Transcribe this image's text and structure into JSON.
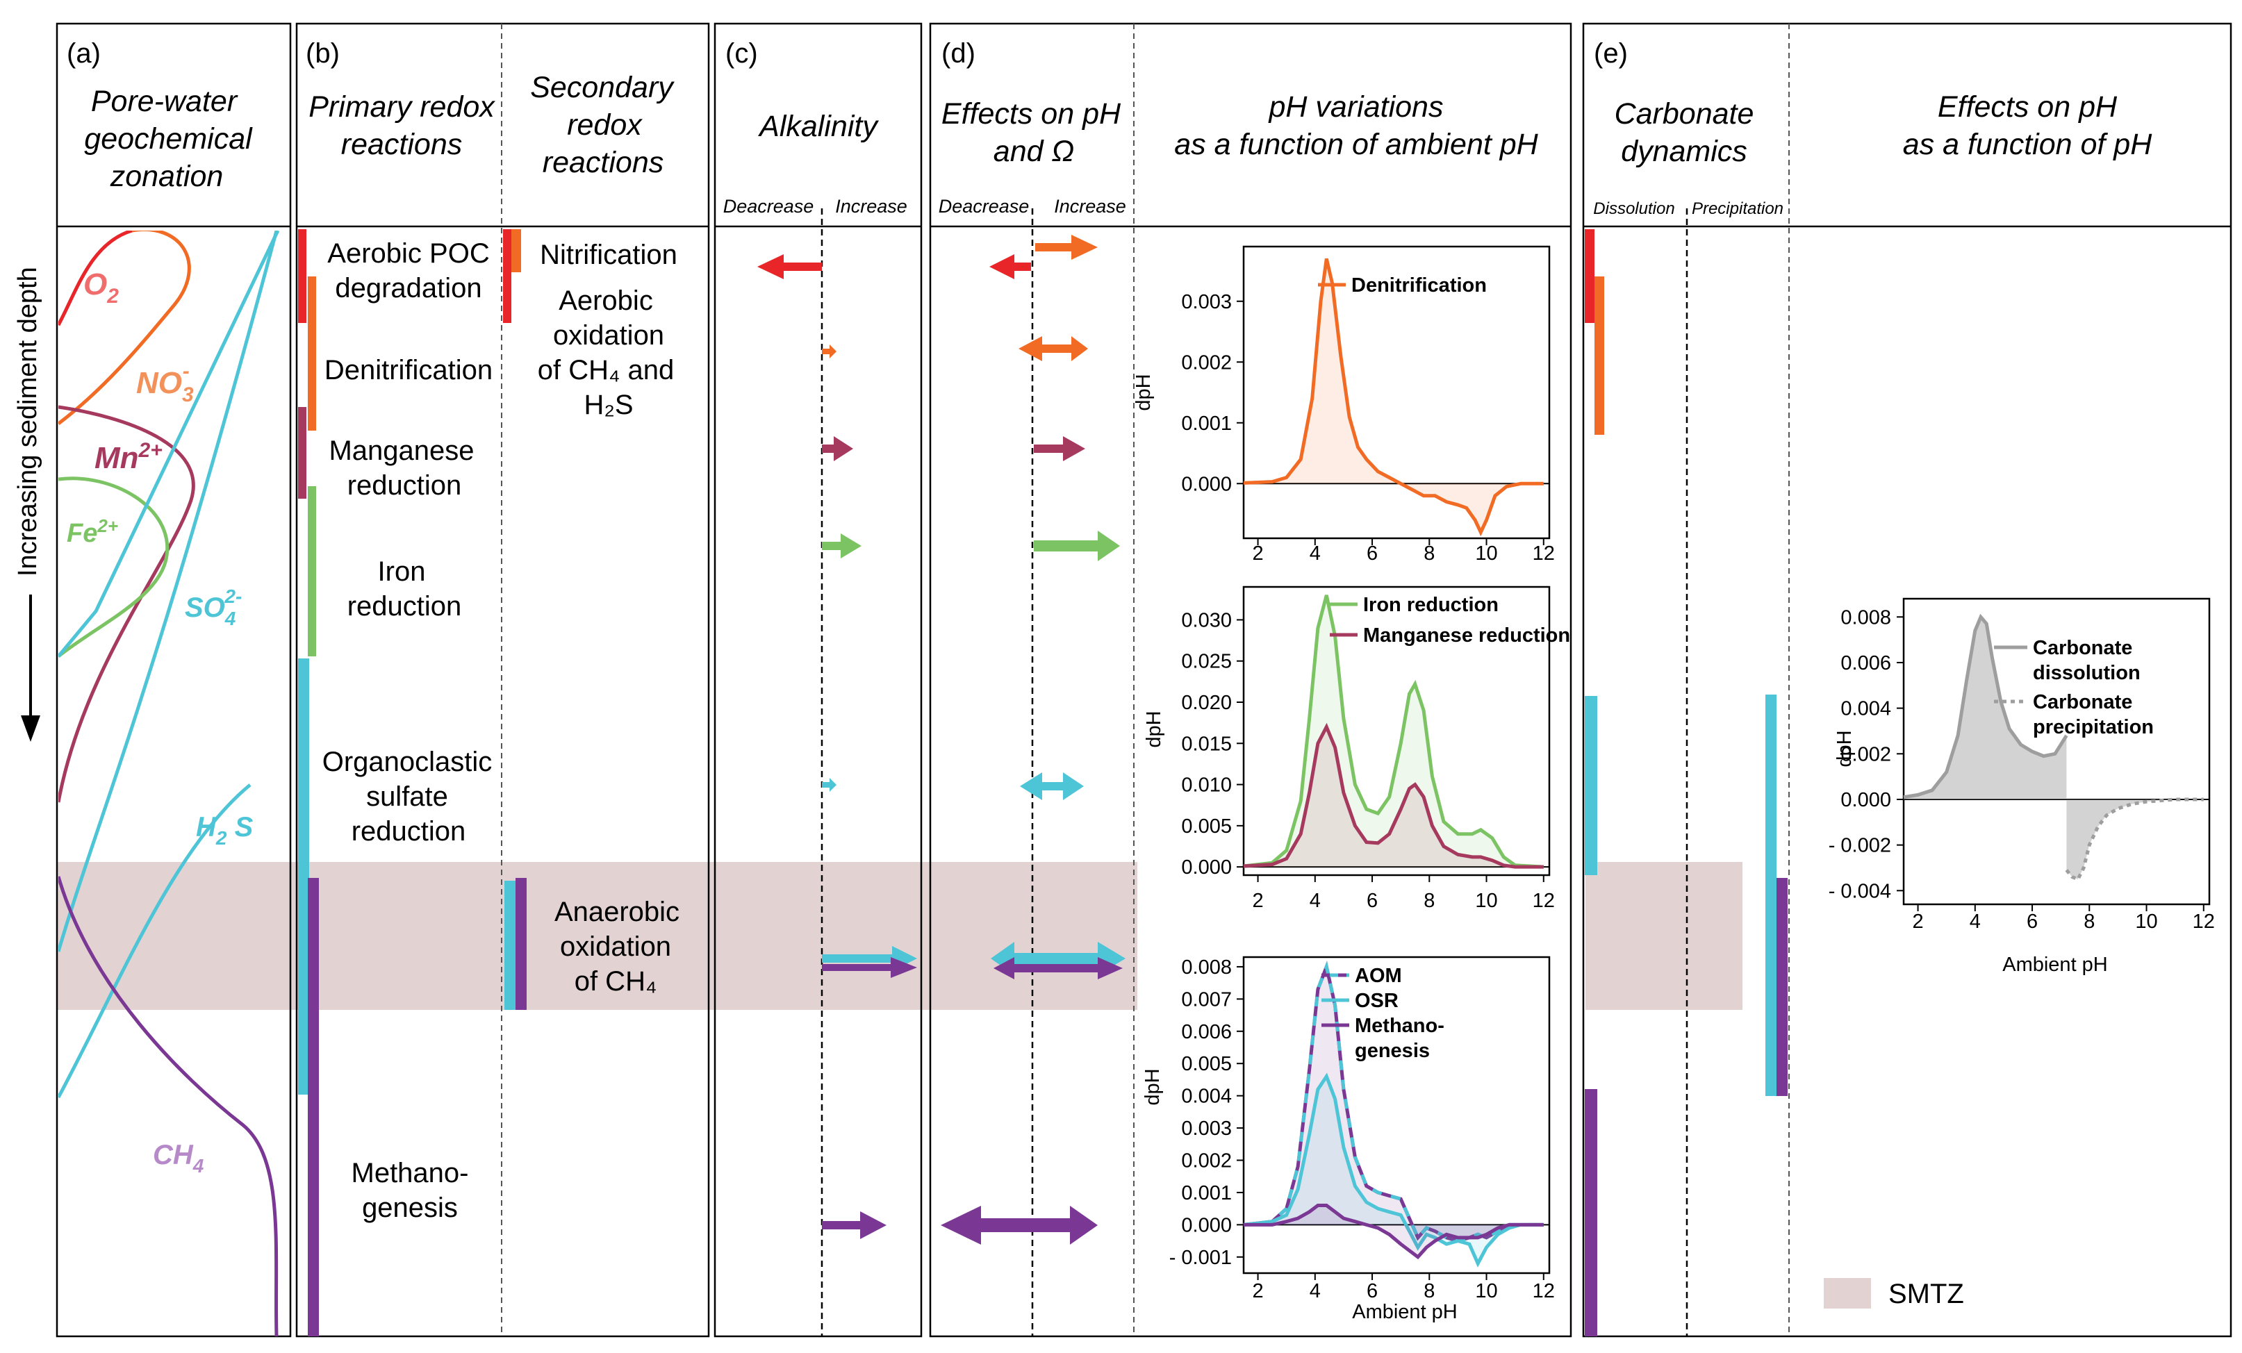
{
  "panels": {
    "a": {
      "letter": "(a)",
      "title": [
        "Pore-water",
        "geochemical",
        "zonation"
      ]
    },
    "b": {
      "letter": "(b)",
      "title_primary": [
        "Primary redox",
        "reactions"
      ],
      "title_secondary": [
        "Secondary",
        "redox",
        "reactions"
      ]
    },
    "c": {
      "letter": "(c)",
      "title": "Alkalinity",
      "decrease": "Deacrease",
      "increase": "Increase"
    },
    "d": {
      "letter": "(d)",
      "title_effects": [
        "Effects on pH",
        "and Ω"
      ],
      "title_variations": [
        "pH variations",
        "as a function of ambient pH"
      ],
      "decrease": "Deacrease",
      "increase": "Increase"
    },
    "e": {
      "letter": "(e)",
      "title_carb": [
        "Carbonate",
        "dynamics"
      ],
      "title_effects": [
        "Effects on pH",
        "as a function of pH"
      ],
      "dissolution": "Dissolution",
      "precipitation": "Precipitation"
    }
  },
  "depth_axis_label": "Increasing sediment depth",
  "species": {
    "o2": {
      "base": "O",
      "sub": "2",
      "sup": ""
    },
    "no3": {
      "base": "NO",
      "sub": "3",
      "sup": "-"
    },
    "mn": {
      "base": "Mn",
      "sub": "",
      "sup": "2+"
    },
    "fe": {
      "base": "Fe",
      "sub": "",
      "sup": "2+"
    },
    "so4": {
      "base": "SO",
      "sub": "4",
      "sup": "2-"
    },
    "h2s": {
      "base": "H",
      "sub": "2",
      "sup": "",
      "tail": " S"
    },
    "ch4": {
      "base": "CH",
      "sub": "4",
      "sup": ""
    }
  },
  "primary_reactions": {
    "aerobic": [
      "Aerobic POC",
      "degradation"
    ],
    "denitrification": [
      "Denitrification"
    ],
    "manganese": [
      "Manganese",
      "reduction"
    ],
    "iron": [
      "Iron",
      "reduction"
    ],
    "sulfate": [
      "Organoclastic",
      "sulfate",
      "reduction"
    ],
    "methanogenesis": [
      "Methano-",
      "genesis"
    ]
  },
  "secondary_reactions": {
    "nitrification": "Nitrification",
    "aerobic_oxidation": [
      "Aerobic",
      "oxidation",
      "of CH₄ and",
      "H₂S"
    ],
    "aom": [
      "Anaerobic",
      "oxidation",
      "of CH₄"
    ]
  },
  "legend_smtz": "SMTZ",
  "colors": {
    "o2": "#e8262a",
    "no3": "#f26b24",
    "mn": "#a63a5e",
    "fe": "#7cc463",
    "so4": "#4ec5d6",
    "ch4": "#7a3793",
    "smtz": "#e2d2d2",
    "carbonate": "#9e9e9e"
  },
  "chart_data": [
    {
      "type": "area",
      "id": "denitrification",
      "xlabel": "",
      "ylabel": "dpH",
      "xlim": [
        1.5,
        12.2
      ],
      "ylim": [
        -0.0009,
        0.0039
      ],
      "xticks": [
        2,
        4,
        6,
        8,
        10,
        12
      ],
      "yticks": [
        0.0,
        0.001,
        0.002,
        0.003
      ],
      "ytick_labels": [
        "0.000",
        "0.001",
        "0.002",
        "0.003"
      ],
      "series": [
        {
          "name": "Denitrification",
          "color": "#f26b24",
          "x": [
            1.5,
            2.5,
            3.0,
            3.5,
            3.9,
            4.2,
            4.4,
            4.6,
            4.9,
            5.2,
            5.5,
            5.8,
            6.2,
            6.6,
            7.0,
            7.4,
            7.8,
            8.2,
            8.6,
            9.0,
            9.3,
            9.6,
            9.8,
            10.0,
            10.3,
            10.7,
            11.2,
            12.0
          ],
          "y": [
            1e-05,
            3e-05,
            0.0001,
            0.0004,
            0.0014,
            0.003,
            0.0037,
            0.0033,
            0.0021,
            0.0011,
            0.0006,
            0.0004,
            0.0002,
            0.0001,
            0.0,
            -0.0001,
            -0.0002,
            -0.0002,
            -0.0003,
            -0.00035,
            -0.0004,
            -0.0006,
            -0.0008,
            -0.0006,
            -0.0002,
            -5e-05,
            0.0,
            0.0
          ]
        }
      ]
    },
    {
      "type": "area",
      "id": "iron_manganese",
      "xlabel": "",
      "ylabel": "dpH",
      "xlim": [
        1.5,
        12.2
      ],
      "ylim": [
        -0.001,
        0.034
      ],
      "xticks": [
        2,
        4,
        6,
        8,
        10,
        12
      ],
      "yticks": [
        0.0,
        0.005,
        0.01,
        0.015,
        0.02,
        0.025,
        0.03
      ],
      "ytick_labels": [
        "0.000",
        "0.005",
        "0.010",
        "0.015",
        "0.020",
        "0.025",
        "0.030"
      ],
      "series": [
        {
          "name": "Iron reduction",
          "color": "#7cc463",
          "x": [
            1.5,
            2.5,
            3.0,
            3.5,
            3.8,
            4.1,
            4.4,
            4.7,
            5.0,
            5.4,
            5.8,
            6.2,
            6.6,
            7.0,
            7.3,
            7.5,
            7.8,
            8.1,
            8.5,
            9.0,
            9.5,
            9.8,
            10.2,
            10.6,
            11.0,
            12.0
          ],
          "y": [
            0.0001,
            0.0005,
            0.002,
            0.008,
            0.018,
            0.029,
            0.033,
            0.028,
            0.018,
            0.01,
            0.007,
            0.0065,
            0.0085,
            0.015,
            0.021,
            0.0222,
            0.019,
            0.011,
            0.0055,
            0.004,
            0.004,
            0.0045,
            0.0035,
            0.0012,
            0.0002,
            0.0
          ]
        },
        {
          "name": "Manganese reduction",
          "color": "#a63a5e",
          "x": [
            1.5,
            2.5,
            3.0,
            3.5,
            3.8,
            4.1,
            4.4,
            4.7,
            5.0,
            5.4,
            5.8,
            6.2,
            6.6,
            7.0,
            7.3,
            7.5,
            7.8,
            8.1,
            8.5,
            9.0,
            9.5,
            9.8,
            10.2,
            10.6,
            11.0,
            12.0
          ],
          "y": [
            0.0001,
            0.0003,
            0.001,
            0.004,
            0.009,
            0.015,
            0.017,
            0.0145,
            0.009,
            0.005,
            0.003,
            0.0029,
            0.004,
            0.007,
            0.0095,
            0.01,
            0.0085,
            0.005,
            0.0025,
            0.0015,
            0.0012,
            0.0012,
            0.0008,
            0.0002,
            0.0,
            0.0
          ]
        }
      ]
    },
    {
      "type": "area",
      "id": "aom_osr_methanogenesis",
      "xlabel": "Ambient pH",
      "ylabel": "dpH",
      "xlim": [
        1.5,
        12.2
      ],
      "ylim": [
        -0.0015,
        0.0083
      ],
      "xticks": [
        2,
        4,
        6,
        8,
        10,
        12
      ],
      "yticks": [
        -0.001,
        0.0,
        0.001,
        0.002,
        0.003,
        0.004,
        0.005,
        0.006,
        0.007,
        0.008
      ],
      "ytick_labels": [
        "- 0.001",
        "0.000",
        "0.001",
        "0.002",
        "0.003",
        "0.004",
        "0.005",
        "0.006",
        "0.007",
        "0.008"
      ],
      "series": [
        {
          "name": "AOM",
          "color": "#7a3793",
          "dash2": "#4ec5d6",
          "x": [
            1.5,
            2.5,
            3.0,
            3.4,
            3.8,
            4.1,
            4.4,
            4.7,
            5.0,
            5.4,
            5.8,
            6.2,
            6.6,
            7.0,
            7.3,
            7.6,
            7.9,
            8.2,
            8.6,
            9.0,
            9.4,
            9.7,
            10.0,
            10.4,
            10.8,
            11.2,
            12.0
          ],
          "y": [
            0.0,
            0.0001,
            0.0005,
            0.0018,
            0.0048,
            0.0073,
            0.008,
            0.0068,
            0.0042,
            0.0021,
            0.0012,
            0.001,
            0.0009,
            0.0008,
            0.0002,
            -0.0004,
            -0.0001,
            -0.0002,
            -0.0004,
            -0.0005,
            -0.0004,
            -0.0003,
            -0.0004,
            -0.0002,
            0.0,
            0.0,
            0.0
          ]
        },
        {
          "name": "OSR",
          "color": "#4ec5d6",
          "x": [
            1.5,
            2.5,
            3.0,
            3.4,
            3.8,
            4.1,
            4.4,
            4.7,
            5.0,
            5.4,
            5.8,
            6.2,
            6.6,
            7.0,
            7.3,
            7.6,
            7.9,
            8.2,
            8.6,
            9.0,
            9.4,
            9.7,
            10.0,
            10.4,
            10.8,
            11.2,
            12.0
          ],
          "y": [
            0.0,
            0.0001,
            0.0003,
            0.0011,
            0.0028,
            0.0042,
            0.0046,
            0.0039,
            0.0024,
            0.0012,
            0.0007,
            0.0005,
            0.0004,
            0.0003,
            -0.0002,
            -0.0007,
            -0.0003,
            -0.0004,
            -0.0006,
            -0.0005,
            -0.0006,
            -0.0012,
            -0.0007,
            -0.0003,
            -0.0001,
            0.0,
            0.0
          ]
        },
        {
          "name": "Methano-\ngenesis",
          "color": "#7a3793",
          "x": [
            1.5,
            2.5,
            3.0,
            3.4,
            3.8,
            4.1,
            4.4,
            4.7,
            5.0,
            5.4,
            5.8,
            6.2,
            6.6,
            7.0,
            7.3,
            7.6,
            7.9,
            8.2,
            8.6,
            9.0,
            9.4,
            9.7,
            10.0,
            10.4,
            10.8,
            11.2,
            12.0
          ],
          "y": [
            0.0,
            0.0,
            0.0001,
            0.0002,
            0.0004,
            0.0006,
            0.0006,
            0.0004,
            0.0002,
            0.0001,
            0.0,
            -0.0001,
            -0.0003,
            -0.0006,
            -0.0008,
            -0.001,
            -0.0007,
            -0.0005,
            -0.0003,
            -0.0004,
            -0.0004,
            -0.0004,
            -0.0003,
            -0.0001,
            0.0,
            0.0,
            0.0
          ]
        }
      ]
    },
    {
      "type": "area",
      "id": "carbonate",
      "xlabel": "Ambient pH",
      "ylabel": "dpH",
      "xlim": [
        1.5,
        12.2
      ],
      "ylim": [
        -0.0046,
        0.0088
      ],
      "xticks": [
        2,
        4,
        6,
        8,
        10,
        12
      ],
      "yticks": [
        -0.004,
        -0.002,
        0.0,
        0.002,
        0.004,
        0.006,
        0.008
      ],
      "ytick_labels": [
        "- 0.004",
        "- 0.002",
        "0.000",
        "0.002",
        "0.004",
        "0.006",
        "0.008"
      ],
      "series": [
        {
          "name": "Carbonate\ndissolution",
          "color": "#9e9e9e",
          "x": [
            1.5,
            2.0,
            2.5,
            3.0,
            3.4,
            3.7,
            4.0,
            4.2,
            4.4,
            4.6,
            4.9,
            5.2,
            5.6,
            6.0,
            6.4,
            6.8,
            7.2
          ],
          "y": [
            0.0001,
            0.0002,
            0.0004,
            0.0012,
            0.0028,
            0.0052,
            0.0074,
            0.008,
            0.0077,
            0.0062,
            0.0043,
            0.0031,
            0.0024,
            0.0021,
            0.0019,
            0.002,
            0.0028
          ]
        },
        {
          "name": "Carbonate\nprecipitation",
          "color": "#9e9e9e",
          "dashed": true,
          "x": [
            7.2,
            7.4,
            7.6,
            7.8,
            8.0,
            8.3,
            8.6,
            9.0,
            9.5,
            10.0,
            10.5,
            11.0,
            11.5,
            12.0
          ],
          "y": [
            -0.0031,
            -0.0034,
            -0.0035,
            -0.003,
            -0.002,
            -0.0012,
            -0.0007,
            -0.0004,
            -0.0002,
            -0.0001,
            -5e-05,
            0.0,
            0.0,
            0.0
          ]
        }
      ]
    }
  ]
}
